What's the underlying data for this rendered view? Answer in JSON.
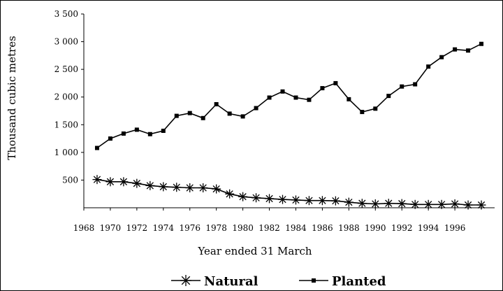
{
  "chart_data": {
    "type": "line",
    "xlabel": "Year ended 31 March",
    "ylabel": "Thousand cubic metres",
    "xlim": [
      1968,
      1999
    ],
    "ylim": [
      0,
      3500
    ],
    "x_ticks": [
      "1968",
      "1970",
      "1972",
      "1974",
      "1976",
      "1978",
      "1980",
      "1982",
      "1984",
      "1986",
      "1988",
      "1990",
      "1992",
      "1994",
      "1996"
    ],
    "y_ticks": [
      "500",
      "1 000",
      "1 500",
      "2 000",
      "2 500",
      "3 000",
      "3 500"
    ],
    "grid": false,
    "legend_position": "bottom",
    "x": [
      1969,
      1970,
      1971,
      1972,
      1973,
      1974,
      1975,
      1976,
      1977,
      1978,
      1979,
      1980,
      1981,
      1982,
      1983,
      1984,
      1985,
      1986,
      1987,
      1988,
      1989,
      1990,
      1991,
      1992,
      1993,
      1994,
      1995,
      1996,
      1997,
      1998
    ],
    "series": [
      {
        "name": "Natural",
        "marker": "asterisk",
        "color": "#000000",
        "values": [
          510,
          470,
          470,
          440,
          400,
          380,
          370,
          360,
          360,
          340,
          250,
          200,
          180,
          165,
          150,
          140,
          130,
          130,
          125,
          100,
          80,
          70,
          80,
          75,
          60,
          60,
          60,
          70,
          50,
          50
        ]
      },
      {
        "name": "Planted",
        "marker": "square",
        "color": "#000000",
        "values": [
          1080,
          1250,
          1340,
          1410,
          1330,
          1390,
          1660,
          1710,
          1620,
          1870,
          1700,
          1650,
          1800,
          1990,
          2100,
          1990,
          1950,
          2160,
          2250,
          1960,
          1730,
          1790,
          2020,
          2190,
          2230,
          2550,
          2720,
          2860,
          2840,
          2960
        ]
      }
    ]
  }
}
